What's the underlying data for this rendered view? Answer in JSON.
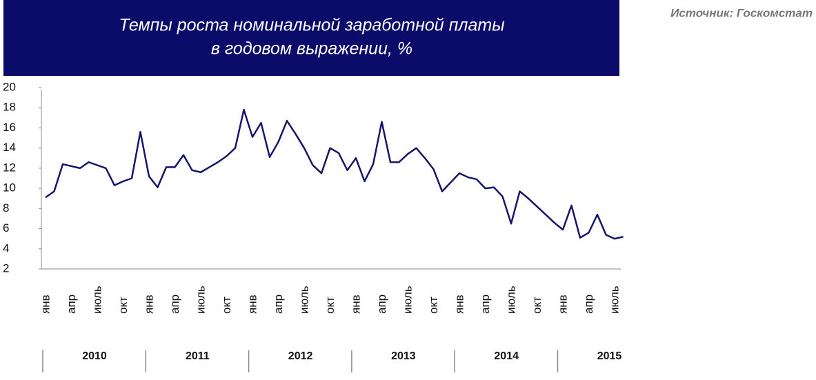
{
  "chart_data": {
    "type": "line",
    "title": [
      "Темпы роста номинальной заработной платы",
      "в годовом выражении, %"
    ],
    "source": "Источник: Госкомстат",
    "categories": [
      "янв",
      null,
      null,
      "апр",
      null,
      null,
      "июль",
      null,
      null,
      "окт",
      null,
      null,
      "янв",
      null,
      null,
      "апр",
      null,
      null,
      "июль",
      null,
      null,
      "окт",
      null,
      null,
      "янв",
      null,
      null,
      "апр",
      null,
      null,
      "июль",
      null,
      null,
      "окт",
      null,
      null,
      "янв",
      null,
      null,
      "апр",
      null,
      null,
      "июль",
      null,
      null,
      "окт",
      null,
      null,
      "янв",
      null,
      null,
      "апр",
      null,
      null,
      "июль",
      null,
      null,
      "окт",
      null,
      null,
      "янв",
      null,
      null,
      "апр",
      null,
      null,
      "июль",
      null
    ],
    "years": [
      "2010",
      "2011",
      "2012",
      "2013",
      "2014",
      "2015"
    ],
    "series": [
      {
        "name": "Темпы роста",
        "color": "#15156b",
        "values": [
          9.1,
          9.7,
          12.4,
          12.2,
          12.0,
          12.6,
          12.3,
          12.0,
          10.3,
          10.7,
          11.0,
          15.6,
          11.2,
          10.1,
          12.1,
          12.1,
          13.3,
          11.8,
          11.6,
          12.1,
          12.6,
          13.2,
          14.0,
          17.8,
          15.1,
          16.5,
          13.1,
          14.6,
          16.7,
          15.4,
          14.0,
          12.3,
          11.5,
          14.0,
          13.5,
          11.8,
          13.0,
          10.7,
          12.4,
          16.6,
          12.6,
          12.6,
          13.4,
          14.0,
          13.0,
          11.9,
          9.7,
          10.6,
          11.5,
          11.1,
          10.9,
          10.0,
          10.1,
          9.2,
          6.5,
          9.7,
          9.0,
          8.2,
          7.4,
          6.6,
          5.9,
          8.3,
          5.1,
          5.6,
          7.4,
          5.4,
          5.0,
          5.2
        ]
      }
    ],
    "ylim": [
      2,
      20
    ],
    "yticks": [
      2,
      4,
      6,
      8,
      10,
      12,
      14,
      16,
      18,
      20
    ]
  }
}
